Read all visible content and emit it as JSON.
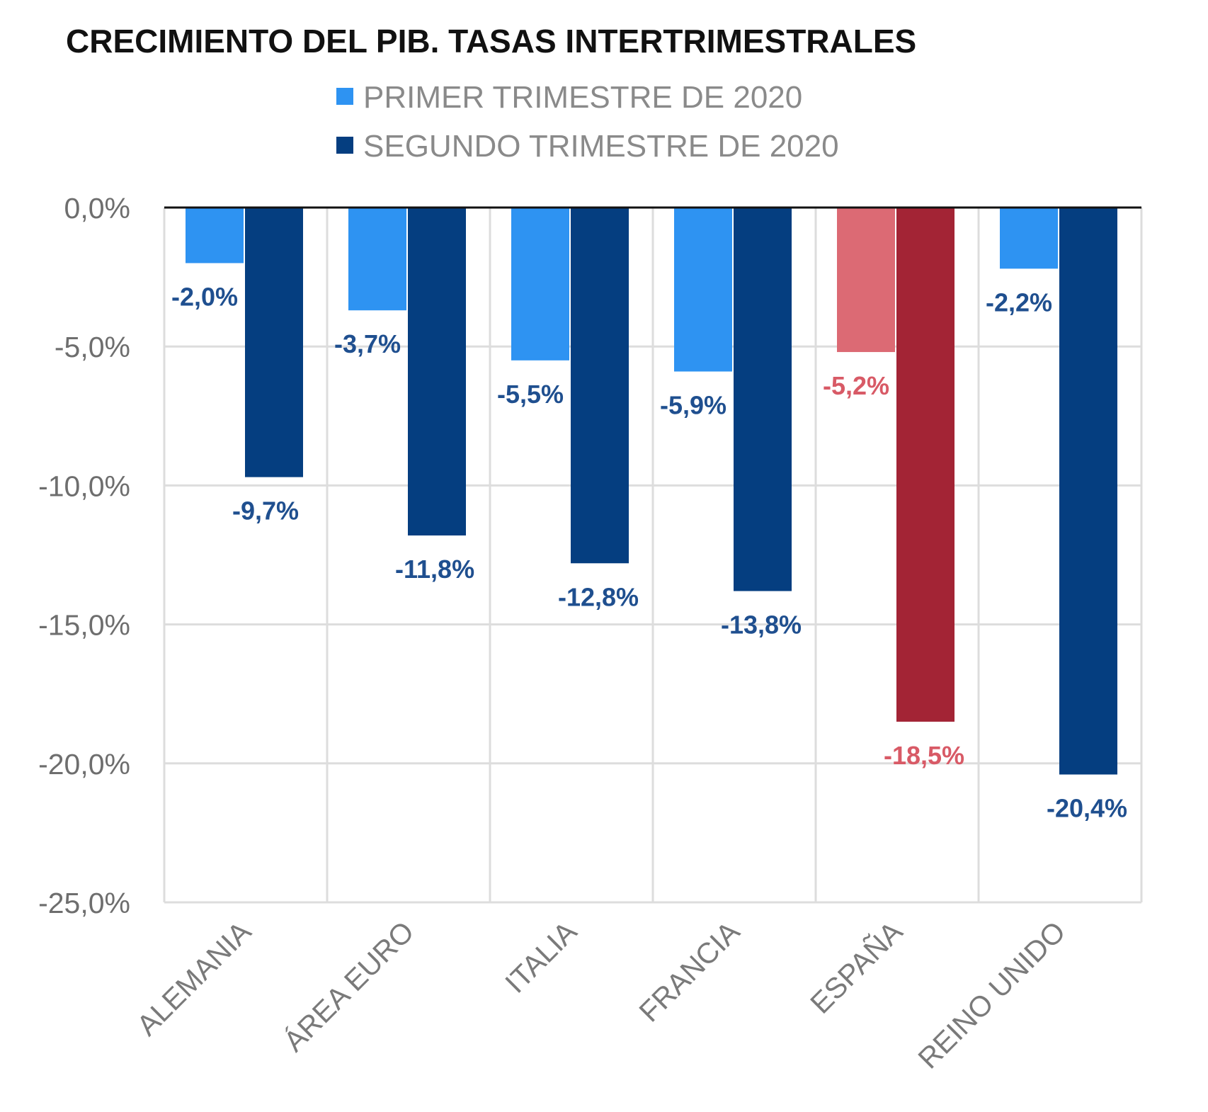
{
  "chart_data": {
    "type": "bar",
    "title": "CRECIMIENTO DEL PIB. TASAS INTERTRIMESTRALES",
    "xlabel": "",
    "ylabel": "",
    "categories": [
      "ALEMANIA",
      "ÁREA EURO",
      "ITALIA",
      "FRANCIA",
      "ESPAÑA",
      "REINO UNIDO"
    ],
    "series": [
      {
        "name": "PRIMER TRIMESTRE DE 2020",
        "values": [
          -2.0,
          -3.7,
          -5.5,
          -5.9,
          -5.2,
          -2.2
        ],
        "labels": [
          "-2,0%",
          "-3,7%",
          "-5,5%",
          "-5,9%",
          "-5,2%",
          "-2,2%"
        ],
        "color": "#2e93f2"
      },
      {
        "name": "SEGUNDO TRIMESTRE DE 2020",
        "values": [
          -9.7,
          -11.8,
          -12.8,
          -13.8,
          -18.5,
          -20.4
        ],
        "labels": [
          "-9,7%",
          "-11,8%",
          "-12,8%",
          "-13,8%",
          "-18,5%",
          "-20,4%"
        ],
        "color": "#053e80"
      }
    ],
    "highlight": {
      "category": "ESPAÑA",
      "colors": [
        "#dc6a74",
        "#a32435"
      ],
      "label_color": "#d85a66"
    },
    "ylim": [
      -25,
      0
    ],
    "yticks": [
      0,
      -5,
      -10,
      -15,
      -20,
      -25
    ],
    "ytick_labels": [
      "0,0%",
      "-5,0%",
      "-10,0%",
      "-15,0%",
      "-20,0%",
      "-25,0%"
    ],
    "label_color": "#1f4f8f",
    "grid": true,
    "legend_position": "top-center"
  }
}
